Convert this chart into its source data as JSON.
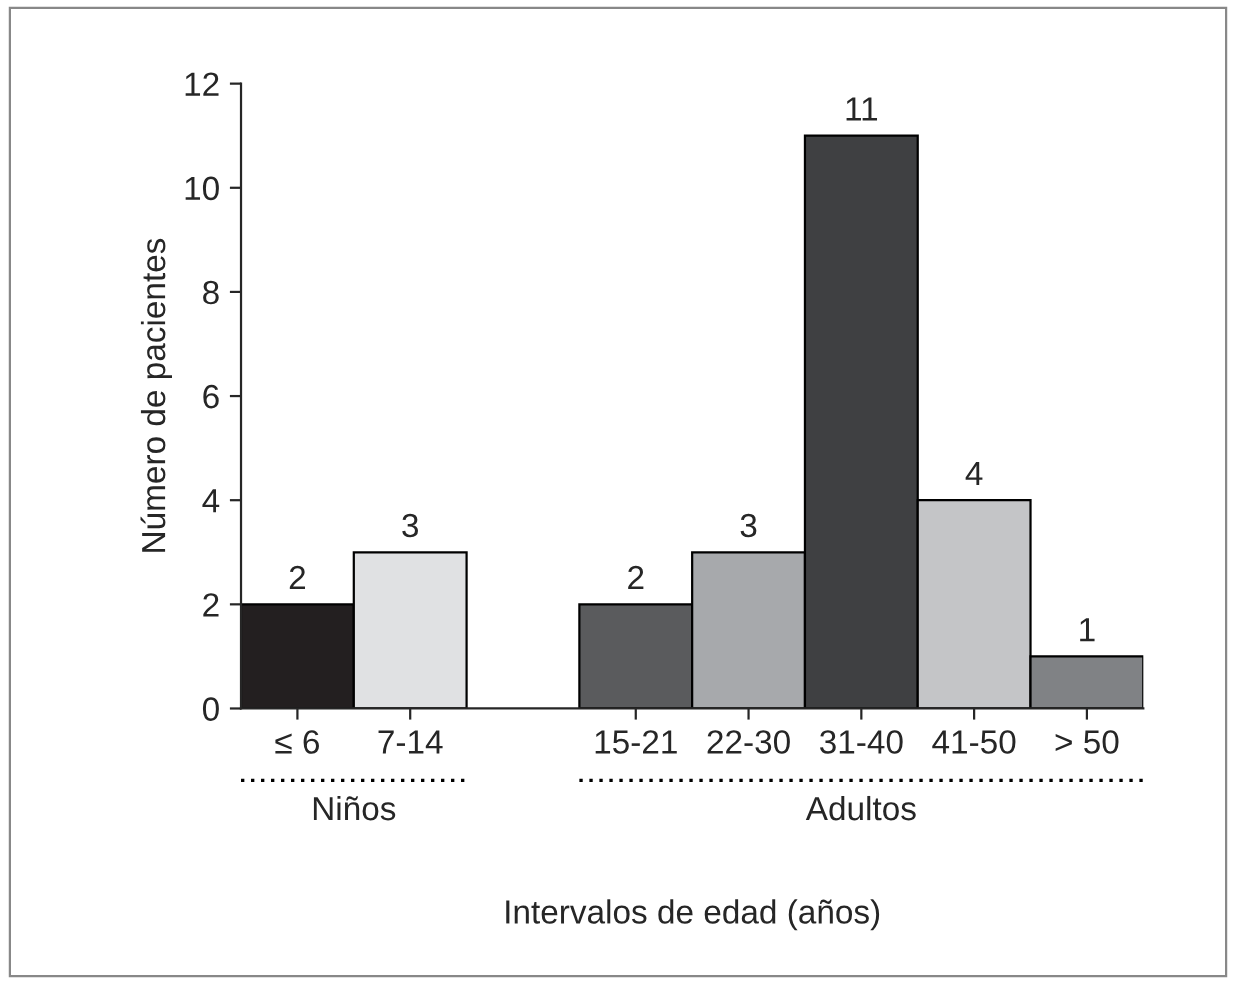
{
  "chart_data": {
    "type": "bar",
    "xlabel": "Intervalos de edad (años)",
    "ylabel": "Número de pacientes",
    "categories": [
      "≤ 6",
      "7-14",
      null,
      "15-21",
      "22-30",
      "31-40",
      "41-50",
      "> 50"
    ],
    "values": [
      2,
      3,
      null,
      2,
      3,
      11,
      4,
      1
    ],
    "colors": [
      "#231f20",
      "#e0e1e3",
      "#ffffff",
      "#5a5b5d",
      "#a7a9ac",
      "#3f4042",
      "#c4c5c7",
      "#808285"
    ],
    "ylim": [
      0,
      12
    ],
    "yticks": [
      0,
      2,
      4,
      6,
      8,
      10,
      12
    ],
    "data_labels": true,
    "grid": false,
    "annotations": [
      "Niños",
      "Adultos"
    ]
  }
}
